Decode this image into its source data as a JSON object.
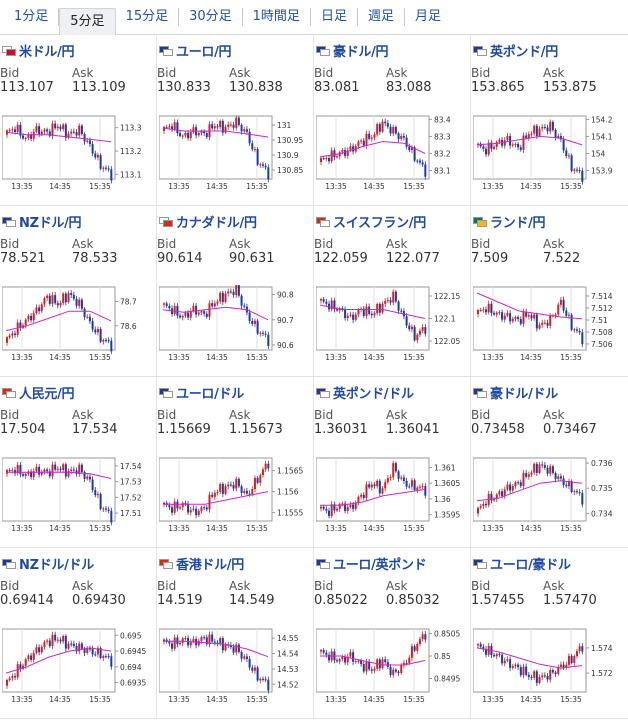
{
  "tabs": [
    "1分足",
    "5分足",
    "15分足",
    "30分足",
    "1時間足",
    "日足",
    "週足",
    "月足"
  ],
  "active_tab": 1,
  "bid_label": "Bid",
  "ask_label": "Ask",
  "colors": {
    "up": "#d82020",
    "down": "#1a3aa8",
    "ma": "#c828c8",
    "link": "#1f4aa0"
  },
  "chart_x_labels": [
    "13:35",
    "14:35",
    "15:35"
  ],
  "pairs": [
    {
      "name": "米ドル/円",
      "bid": "113.107",
      "ask": "113.109",
      "flags": [
        "#fff",
        "#c8102e"
      ],
      "chart_data": {
        "type": "candlestick",
        "y_ticks": [
          "113.3",
          "113.2",
          "113.1"
        ],
        "ylim": [
          113.08,
          113.35
        ],
        "path": [
          113.27,
          113.3,
          113.25,
          113.29,
          113.28,
          113.31,
          113.27,
          113.29,
          113.22,
          113.14,
          113.1
        ],
        "ma_path": [
          113.28,
          113.27,
          113.27,
          113.26,
          113.25,
          113.24
        ]
      }
    },
    {
      "name": "ユーロ/円",
      "bid": "130.833",
      "ask": "130.838",
      "flags": [
        "#1f3a93",
        "#fff"
      ],
      "chart_data": {
        "type": "candlestick",
        "y_ticks": [
          "131",
          "130.95",
          "130.9",
          "130.85"
        ],
        "ylim": [
          130.82,
          131.03
        ],
        "path": [
          130.98,
          131.0,
          130.96,
          130.98,
          130.97,
          131.0,
          130.99,
          131.01,
          130.97,
          130.88,
          130.84
        ],
        "ma_path": [
          130.99,
          130.98,
          130.98,
          130.98,
          130.97,
          130.96
        ]
      }
    },
    {
      "name": "豪ドル/円",
      "bid": "83.081",
      "ask": "83.088",
      "flags": [
        "#1f3a93",
        "#fff"
      ],
      "chart_data": {
        "type": "candlestick",
        "y_ticks": [
          "83.4",
          "83.3",
          "83.2",
          "83.1"
        ],
        "ylim": [
          83.05,
          83.42
        ],
        "path": [
          83.15,
          83.18,
          83.2,
          83.22,
          83.27,
          83.3,
          83.38,
          83.33,
          83.28,
          83.18,
          83.1
        ],
        "ma_path": [
          83.18,
          83.2,
          83.24,
          83.27,
          83.26,
          83.2
        ]
      }
    },
    {
      "name": "英ポンド/円",
      "bid": "153.865",
      "ask": "153.875",
      "flags": [
        "#1f3a93",
        "#fff"
      ],
      "chart_data": {
        "type": "candlestick",
        "y_ticks": [
          "154.2",
          "154.1",
          "154",
          "153.9"
        ],
        "ylim": [
          153.85,
          154.22
        ],
        "path": [
          154.05,
          154.02,
          154.06,
          154.08,
          154.03,
          154.12,
          154.14,
          154.16,
          154.07,
          153.92,
          153.87
        ],
        "ma_path": [
          154.05,
          154.06,
          154.08,
          154.1,
          154.09,
          154.05
        ]
      }
    },
    {
      "name": "NZドル/円",
      "bid": "78.521",
      "ask": "78.533",
      "flags": [
        "#1f3a93",
        "#fff"
      ],
      "chart_data": {
        "type": "candlestick",
        "y_ticks": [
          "78.7",
          "78.6"
        ],
        "ylim": [
          78.5,
          78.76
        ],
        "path": [
          78.53,
          78.58,
          78.62,
          78.66,
          78.72,
          78.69,
          78.73,
          78.69,
          78.61,
          78.55,
          78.52
        ],
        "ma_path": [
          78.58,
          78.6,
          78.63,
          78.66,
          78.66,
          78.62
        ]
      }
    },
    {
      "name": "カナダドル/円",
      "bid": "90.614",
      "ask": "90.631",
      "flags": [
        "#fff",
        "#d52b1e"
      ],
      "chart_data": {
        "type": "candlestick",
        "y_ticks": [
          "90.8",
          "90.7",
          "90.6"
        ],
        "ylim": [
          90.58,
          90.83
        ],
        "path": [
          90.76,
          90.74,
          90.71,
          90.74,
          90.72,
          90.77,
          90.8,
          90.82,
          90.72,
          90.66,
          90.62
        ],
        "ma_path": [
          90.74,
          90.73,
          90.74,
          90.75,
          90.74,
          90.7
        ]
      }
    },
    {
      "name": "スイスフラン/円",
      "bid": "122.059",
      "ask": "122.077",
      "flags": [
        "#d52b1e",
        "#fff"
      ],
      "chart_data": {
        "type": "candlestick",
        "y_ticks": [
          "122.15",
          "122.1",
          "122.05"
        ],
        "ylim": [
          122.03,
          122.17
        ],
        "path": [
          122.14,
          122.13,
          122.12,
          122.1,
          122.12,
          122.11,
          122.13,
          122.15,
          122.1,
          122.06,
          122.08
        ],
        "ma_path": [
          122.13,
          122.12,
          122.12,
          122.12,
          122.11,
          122.1
        ]
      }
    },
    {
      "name": "ランド/円",
      "bid": "7.509",
      "ask": "7.522",
      "flags": [
        "#007a4d",
        "#ffb612"
      ],
      "chart_data": {
        "type": "candlestick",
        "y_ticks": [
          "7.514",
          "7.512",
          "7.51",
          "7.508",
          "7.506"
        ],
        "ylim": [
          7.505,
          7.5155
        ],
        "path": [
          7.511,
          7.512,
          7.511,
          7.5105,
          7.51,
          7.511,
          7.509,
          7.51,
          7.513,
          7.509,
          7.507
        ],
        "ma_path": [
          7.5145,
          7.513,
          7.5115,
          7.511,
          7.5105,
          7.5102
        ]
      }
    },
    {
      "name": "人民元/円",
      "bid": "17.504",
      "ask": "17.534",
      "flags": [
        "#de2910",
        "#fff"
      ],
      "chart_data": {
        "type": "candlestick",
        "y_ticks": [
          "17.54",
          "17.53",
          "17.52",
          "17.51"
        ],
        "ylim": [
          17.505,
          17.545
        ],
        "path": [
          17.535,
          17.538,
          17.534,
          17.537,
          17.536,
          17.539,
          17.536,
          17.538,
          17.53,
          17.515,
          17.508
        ],
        "ma_path": [
          17.536,
          17.536,
          17.536,
          17.536,
          17.535,
          17.532
        ]
      }
    },
    {
      "name": "ユーロ/ドル",
      "bid": "1.15669",
      "ask": "1.15673",
      "flags": [
        "#1f3a93",
        "#fff"
      ],
      "chart_data": {
        "type": "candlestick",
        "y_ticks": [
          "1.1565",
          "1.156",
          "1.1555"
        ],
        "ylim": [
          1.1553,
          1.1568
        ],
        "path": [
          1.1557,
          1.1556,
          1.1557,
          1.1555,
          1.1556,
          1.156,
          1.1561,
          1.1562,
          1.1559,
          1.1563,
          1.1567
        ],
        "ma_path": [
          1.1557,
          1.1557,
          1.1557,
          1.1558,
          1.1559,
          1.156
        ]
      }
    },
    {
      "name": "英ポンド/ドル",
      "bid": "1.36031",
      "ask": "1.36041",
      "flags": [
        "#1f3a93",
        "#fff"
      ],
      "chart_data": {
        "type": "candlestick",
        "y_ticks": [
          "1.361",
          "1.3605",
          "1.36",
          "1.3595"
        ],
        "ylim": [
          1.3593,
          1.3613
        ],
        "path": [
          1.3597,
          1.3596,
          1.3598,
          1.3597,
          1.3601,
          1.3605,
          1.3603,
          1.361,
          1.3605,
          1.3604,
          1.3603
        ],
        "ma_path": [
          1.3598,
          1.3598,
          1.3599,
          1.3601,
          1.3602,
          1.3603
        ]
      }
    },
    {
      "name": "豪ドル/ドル",
      "bid": "0.73458",
      "ask": "0.73467",
      "flags": [
        "#1f3a93",
        "#fff"
      ],
      "chart_data": {
        "type": "candlestick",
        "y_ticks": [
          "0.736",
          "0.735",
          "0.734"
        ],
        "ylim": [
          0.7337,
          0.7362
        ],
        "path": [
          0.734,
          0.7345,
          0.7347,
          0.735,
          0.7352,
          0.7356,
          0.7359,
          0.7357,
          0.7353,
          0.735,
          0.7346
        ],
        "ma_path": [
          0.7345,
          0.7346,
          0.7349,
          0.7352,
          0.7353,
          0.7352
        ]
      }
    },
    {
      "name": "NZドル/ドル",
      "bid": "0.69414",
      "ask": "0.69430",
      "flags": [
        "#1f3a93",
        "#fff"
      ],
      "chart_data": {
        "type": "candlestick",
        "y_ticks": [
          "0.695",
          "0.6945",
          "0.694",
          "0.6935"
        ],
        "ylim": [
          0.6932,
          0.6952
        ],
        "path": [
          0.6934,
          0.6938,
          0.6942,
          0.6945,
          0.6948,
          0.6949,
          0.6947,
          0.6946,
          0.6945,
          0.6944,
          0.6942
        ],
        "ma_path": [
          0.6938,
          0.694,
          0.6943,
          0.6945,
          0.6946,
          0.6945
        ]
      }
    },
    {
      "name": "香港ドル/円",
      "bid": "14.519",
      "ask": "14.549",
      "flags": [
        "#de2910",
        "#fff"
      ],
      "chart_data": {
        "type": "candlestick",
        "y_ticks": [
          "14.55",
          "14.54",
          "14.53",
          "14.52"
        ],
        "ylim": [
          14.515,
          14.556
        ],
        "path": [
          14.548,
          14.546,
          14.549,
          14.547,
          14.55,
          14.548,
          14.545,
          14.543,
          14.535,
          14.525,
          14.52
        ],
        "ma_path": [
          14.548,
          14.548,
          14.547,
          14.546,
          14.543,
          14.538
        ]
      }
    },
    {
      "name": "ユーロ/英ポンド",
      "bid": "0.85022",
      "ask": "0.85032",
      "flags": [
        "#1f3a93",
        "#fff"
      ],
      "chart_data": {
        "type": "candlestick",
        "y_ticks": [
          "0.8505",
          "0.85",
          "0.8495"
        ],
        "ylim": [
          0.8492,
          0.8506
        ],
        "path": [
          0.8501,
          0.85,
          0.8499,
          0.85,
          0.8498,
          0.8497,
          0.8499,
          0.8496,
          0.8498,
          0.8502,
          0.8505
        ],
        "ma_path": [
          0.85,
          0.85,
          0.8499,
          0.8498,
          0.8498,
          0.8499
        ]
      }
    },
    {
      "name": "ユーロ/豪ドル",
      "bid": "1.57455",
      "ask": "1.57470",
      "flags": [
        "#1f3a93",
        "#fff"
      ],
      "chart_data": {
        "type": "candlestick",
        "y_ticks": [
          "1.574",
          "1.572"
        ],
        "ylim": [
          1.5705,
          1.5755
        ],
        "path": [
          1.5742,
          1.5738,
          1.5734,
          1.5728,
          1.5724,
          1.5718,
          1.5716,
          1.5719,
          1.5725,
          1.5731,
          1.5742
        ],
        "ma_path": [
          1.574,
          1.5737,
          1.5732,
          1.5727,
          1.5724,
          1.5726
        ]
      }
    }
  ]
}
